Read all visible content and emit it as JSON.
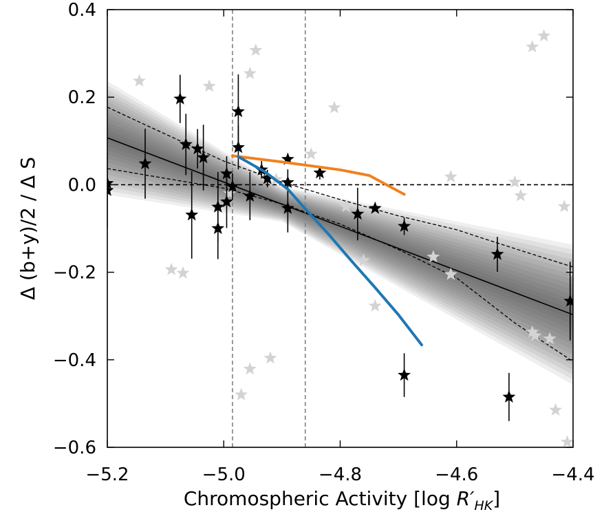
{
  "chart_data": {
    "type": "scatter",
    "title": "",
    "xlabel": "Chromospheric Activity [log R′HK]",
    "ylabel": "Δ (b+y)/2 / Δ S",
    "xlim": [
      -5.2,
      -4.4
    ],
    "ylim": [
      -0.6,
      0.4
    ],
    "xticks": [
      -5.2,
      -5.0,
      -4.8,
      -4.6,
      -4.4
    ],
    "yticks": [
      0.4,
      0.2,
      0.0,
      -0.2,
      -0.4,
      -0.6
    ],
    "xtick_labels": [
      "−5.2",
      "−5.0",
      "−4.8",
      "−4.6",
      "−4.4"
    ],
    "ytick_labels": [
      "0.4",
      "0.2",
      "0.0",
      "−0.2",
      "−0.4",
      "−0.6"
    ],
    "grid": false,
    "legend": "none",
    "horizontal_lines": [
      {
        "y": 0.0,
        "style": "dashed",
        "color": "#000000"
      }
    ],
    "vertical_lines": [
      {
        "x": -4.985,
        "style": "dashed",
        "color": "#808080"
      },
      {
        "x": -4.86,
        "style": "dashed",
        "color": "#808080"
      }
    ],
    "fit": {
      "line": [
        [
          -5.2,
          0.107
        ],
        [
          -4.4,
          -0.297
        ]
      ],
      "confidence_upper": [
        [
          -5.2,
          0.177
        ],
        [
          -5.0,
          0.054
        ],
        [
          -4.9,
          0.006
        ],
        [
          -4.8,
          -0.034
        ],
        [
          -4.7,
          -0.071
        ],
        [
          -4.6,
          -0.103
        ],
        [
          -4.5,
          -0.146
        ],
        [
          -4.4,
          -0.188
        ]
      ],
      "confidence_lower": [
        [
          -5.2,
          0.037
        ],
        [
          -5.0,
          -0.008
        ],
        [
          -4.9,
          -0.044
        ],
        [
          -4.8,
          -0.09
        ],
        [
          -4.7,
          -0.148
        ],
        [
          -4.6,
          -0.213
        ],
        [
          -4.5,
          -0.316
        ],
        [
          -4.4,
          -0.404
        ]
      ],
      "band_halfwidth_left": 0.13,
      "band_halfwidth_center": 0.04,
      "band_halfwidth_right": 0.16,
      "colors": {
        "line": "#000000",
        "band": "#4a4a4a"
      }
    },
    "curves": [
      {
        "color": "#f0821e",
        "points": [
          [
            -4.985,
            0.066
          ],
          [
            -4.9,
            0.052
          ],
          [
            -4.8,
            0.034
          ],
          [
            -4.75,
            0.021
          ],
          [
            -4.69,
            -0.022
          ]
        ]
      },
      {
        "color": "#1f77b4",
        "points": [
          [
            -4.975,
            0.064
          ],
          [
            -4.93,
            0.03
          ],
          [
            -4.89,
            -0.01
          ],
          [
            -4.86,
            -0.055
          ],
          [
            -4.82,
            -0.113
          ],
          [
            -4.78,
            -0.175
          ],
          [
            -4.74,
            -0.235
          ],
          [
            -4.7,
            -0.297
          ],
          [
            -4.66,
            -0.366
          ]
        ]
      }
    ],
    "background_points": {
      "color": "#d3d3d3",
      "points": [
        [
          -5.145,
          0.237
        ],
        [
          -5.09,
          -0.194
        ],
        [
          -5.07,
          -0.202
        ],
        [
          -5.025,
          0.225
        ],
        [
          -4.99,
          -0.02
        ],
        [
          -4.97,
          -0.48
        ],
        [
          -4.955,
          0.254
        ],
        [
          -4.955,
          -0.421
        ],
        [
          -4.945,
          0.307
        ],
        [
          -4.92,
          -0.396
        ],
        [
          -4.91,
          0.012
        ],
        [
          -4.85,
          0.07
        ],
        [
          -4.81,
          0.176
        ],
        [
          -4.79,
          -0.05
        ],
        [
          -4.76,
          -0.173
        ],
        [
          -4.74,
          -0.277
        ],
        [
          -4.64,
          -0.165
        ],
        [
          -4.61,
          -0.205
        ],
        [
          -4.61,
          0.018
        ],
        [
          -4.5,
          0.006
        ],
        [
          -4.49,
          -0.025
        ],
        [
          -4.47,
          0.315
        ],
        [
          -4.47,
          -0.337
        ],
        [
          -4.465,
          -0.345
        ],
        [
          -4.45,
          0.34
        ],
        [
          -4.44,
          -0.352
        ],
        [
          -4.43,
          -0.515
        ],
        [
          -4.415,
          -0.05
        ],
        [
          -4.41,
          -0.588
        ],
        [
          -4.4,
          -0.2
        ]
      ]
    },
    "data_points": {
      "color": "#000000",
      "points": [
        {
          "x": -5.2,
          "y": 0.003,
          "err": 0.0
        },
        {
          "x": -5.2,
          "y": -0.013,
          "err": 0.085
        },
        {
          "x": -5.135,
          "y": 0.048,
          "err": 0.08
        },
        {
          "x": -5.075,
          "y": 0.196,
          "err": 0.055
        },
        {
          "x": -5.065,
          "y": 0.092,
          "err": 0.07
        },
        {
          "x": -5.055,
          "y": -0.069,
          "err": 0.1
        },
        {
          "x": -5.045,
          "y": 0.082,
          "err": 0.045
        },
        {
          "x": -5.035,
          "y": 0.062,
          "err": 0.075
        },
        {
          "x": -5.01,
          "y": -0.051,
          "err": 0.08
        },
        {
          "x": -5.01,
          "y": -0.1,
          "err": 0.07
        },
        {
          "x": -4.995,
          "y": -0.039,
          "err": 0.06
        },
        {
          "x": -4.995,
          "y": 0.025,
          "err": 0.04
        },
        {
          "x": -4.985,
          "y": -0.004,
          "err": 0.03
        },
        {
          "x": -4.975,
          "y": 0.085,
          "err": 0.05
        },
        {
          "x": -4.975,
          "y": 0.167,
          "err": 0.085
        },
        {
          "x": -4.955,
          "y": -0.026,
          "err": 0.055
        },
        {
          "x": -4.935,
          "y": 0.034,
          "err": 0.02
        },
        {
          "x": -4.925,
          "y": 0.014,
          "err": 0.02
        },
        {
          "x": -4.89,
          "y": 0.058,
          "err": 0.01
        },
        {
          "x": -4.89,
          "y": 0.005,
          "err": 0.03
        },
        {
          "x": -4.89,
          "y": -0.054,
          "err": 0.055
        },
        {
          "x": -4.835,
          "y": 0.027,
          "err": 0.015
        },
        {
          "x": -4.77,
          "y": -0.067,
          "err": 0.06
        },
        {
          "x": -4.74,
          "y": -0.054,
          "err": 0.0
        },
        {
          "x": -4.69,
          "y": -0.095,
          "err": 0.02
        },
        {
          "x": -4.69,
          "y": -0.435,
          "err": 0.05
        },
        {
          "x": -4.53,
          "y": -0.159,
          "err": 0.04
        },
        {
          "x": -4.51,
          "y": -0.485,
          "err": 0.055
        },
        {
          "x": -4.405,
          "y": -0.266,
          "err": 0.09
        }
      ]
    }
  }
}
